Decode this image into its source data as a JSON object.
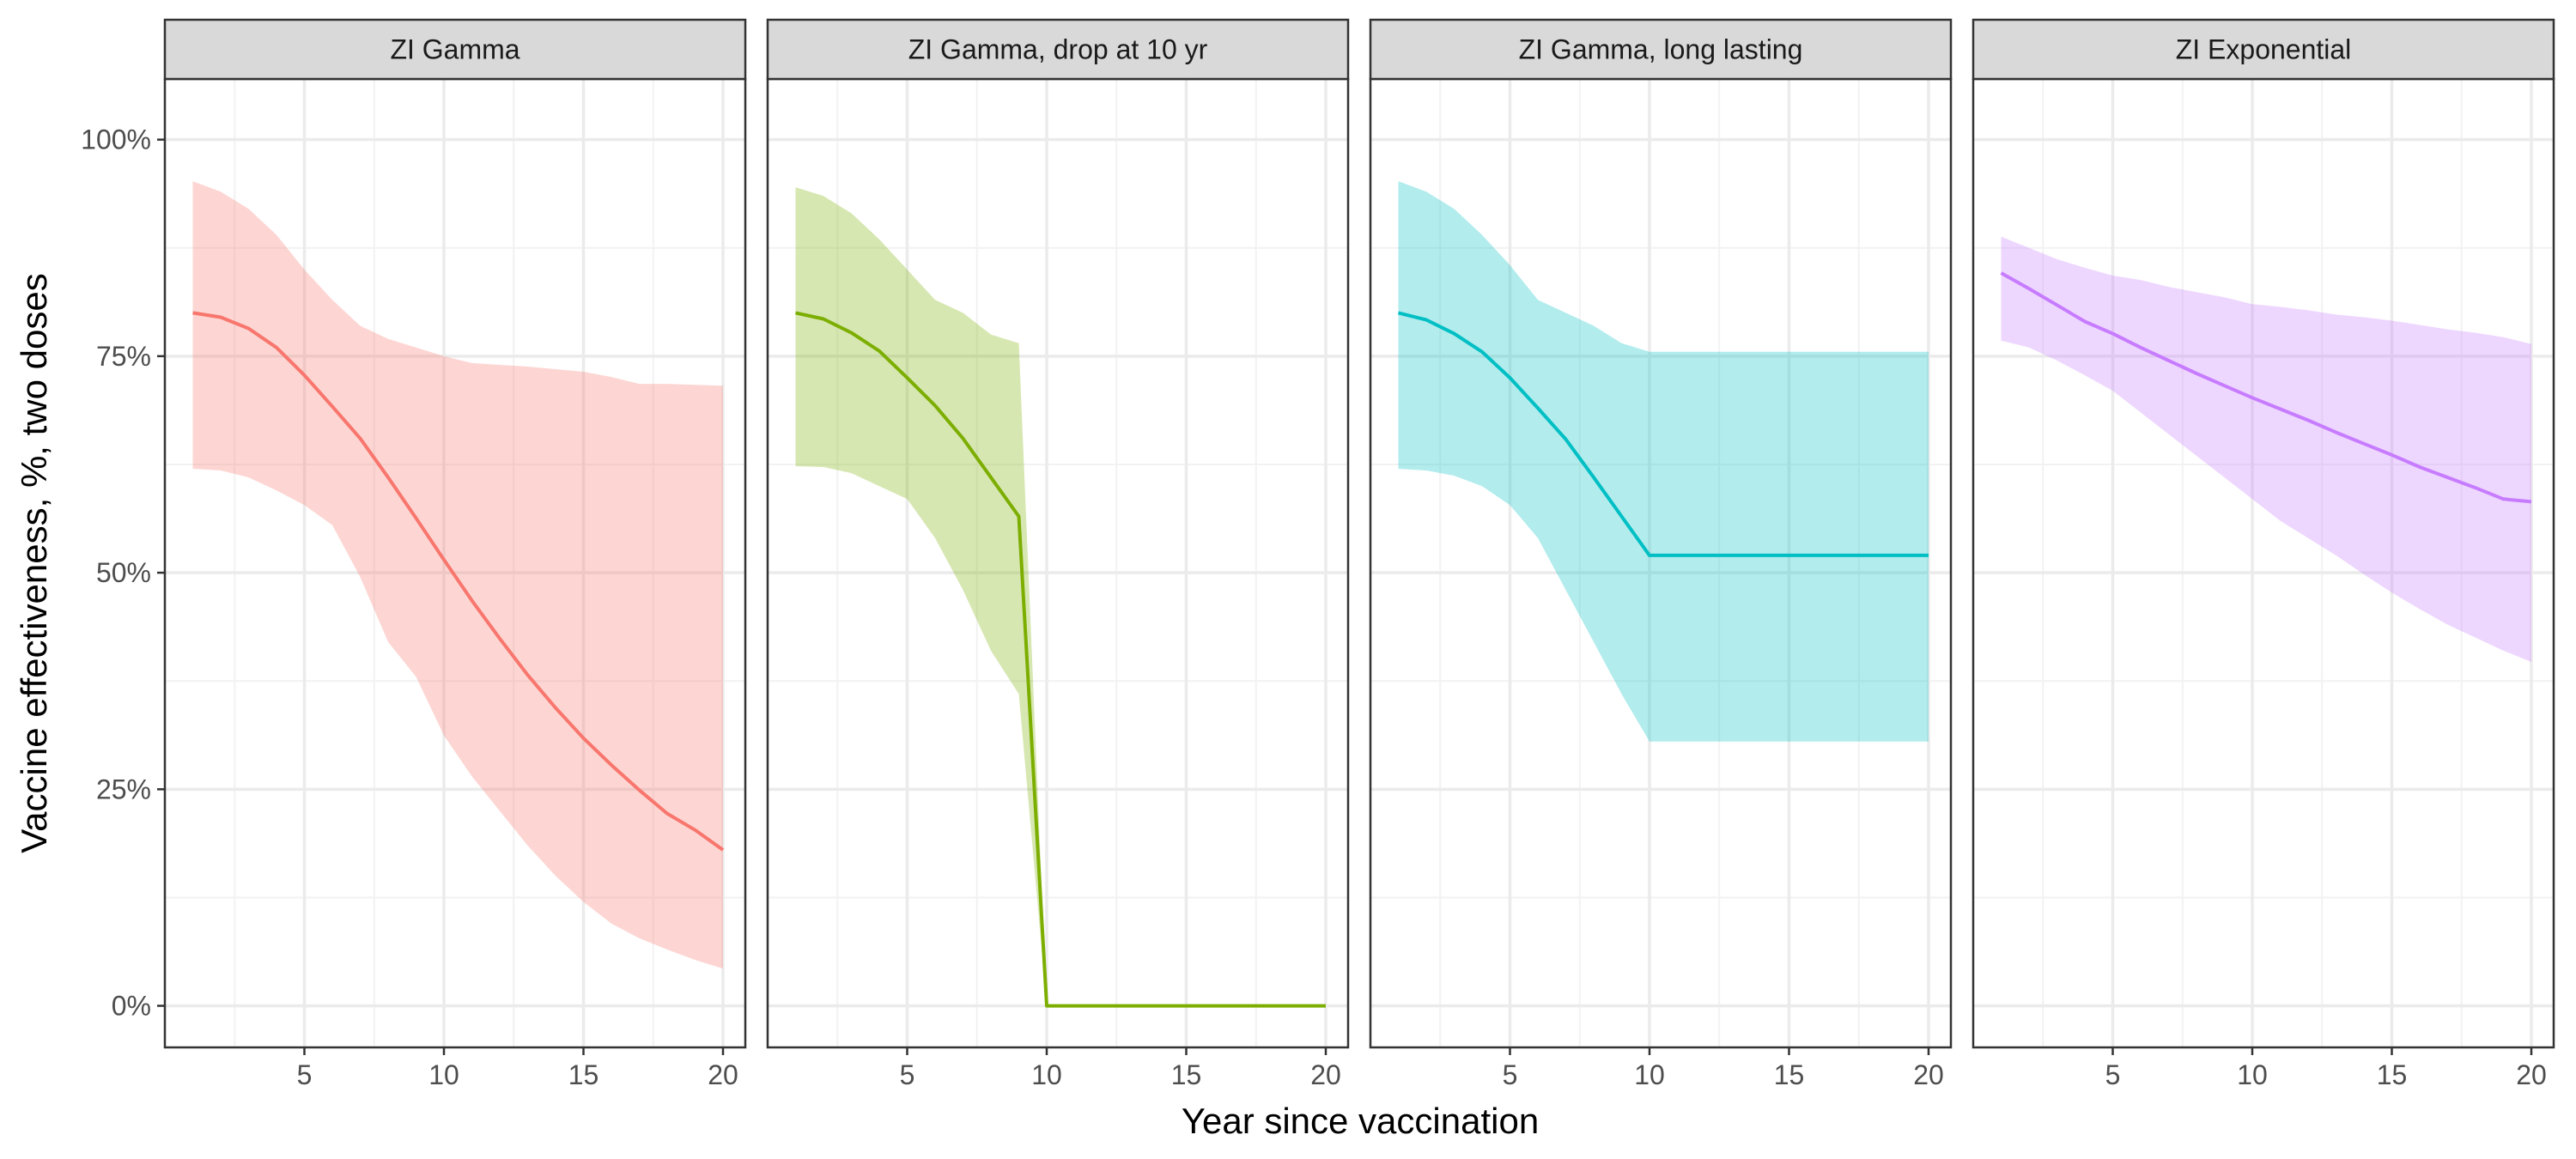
{
  "chart_data": {
    "type": "area",
    "xlabel": "Year since vaccination",
    "ylabel": "Vaccine effectiveness, %, two doses",
    "xlim": [
      0,
      20.8
    ],
    "ylim": [
      -0.048,
      1.07
    ],
    "x_ticks": [
      5,
      10,
      15,
      20
    ],
    "y_ticks": [
      0,
      0.25,
      0.5,
      0.75,
      1.0
    ],
    "y_tick_labels": [
      "0%",
      "25%",
      "50%",
      "75%",
      "100%"
    ],
    "grid": true,
    "legend": "none",
    "panels": [
      {
        "title": "ZI Gamma",
        "color": "#F8766D",
        "x": [
          1,
          2,
          3,
          4,
          5,
          6,
          7,
          8,
          9,
          10,
          11,
          12,
          13,
          14,
          15,
          16,
          17,
          18,
          19,
          20
        ],
        "mean": [
          0.8,
          0.795,
          0.782,
          0.76,
          0.728,
          0.692,
          0.655,
          0.61,
          0.563,
          0.515,
          0.468,
          0.424,
          0.382,
          0.344,
          0.309,
          0.278,
          0.249,
          0.222,
          0.203,
          0.18
        ],
        "lower": [
          0.62,
          0.618,
          0.61,
          0.595,
          0.578,
          0.555,
          0.495,
          0.42,
          0.38,
          0.312,
          0.265,
          0.225,
          0.185,
          0.15,
          0.12,
          0.095,
          0.078,
          0.065,
          0.053,
          0.043
        ],
        "upper": [
          0.952,
          0.94,
          0.92,
          0.89,
          0.85,
          0.815,
          0.785,
          0.77,
          0.76,
          0.75,
          0.742,
          0.74,
          0.738,
          0.735,
          0.732,
          0.726,
          0.718,
          0.718,
          0.717,
          0.716
        ]
      },
      {
        "title": "ZI Gamma, drop at 10 yr",
        "color": "#7CAE00",
        "x": [
          1,
          2,
          3,
          4,
          5,
          6,
          7,
          8,
          9,
          10,
          11,
          12,
          13,
          14,
          15,
          16,
          17,
          18,
          19,
          20
        ],
        "mean": [
          0.8,
          0.793,
          0.777,
          0.756,
          0.725,
          0.693,
          0.655,
          0.61,
          0.565,
          0,
          0,
          0,
          0,
          0,
          0,
          0,
          0,
          0,
          0,
          0
        ],
        "lower": [
          0.623,
          0.622,
          0.615,
          0.6,
          0.585,
          0.54,
          0.48,
          0.41,
          0.36,
          0,
          0,
          0,
          0,
          0,
          0,
          0,
          0,
          0,
          0,
          0
        ],
        "upper": [
          0.945,
          0.935,
          0.915,
          0.885,
          0.85,
          0.815,
          0.8,
          0.775,
          0.765,
          0,
          0,
          0,
          0,
          0,
          0,
          0,
          0,
          0,
          0,
          0
        ]
      },
      {
        "title": "ZI Gamma, long lasting",
        "color": "#00BFC4",
        "x": [
          1,
          2,
          3,
          4,
          5,
          6,
          7,
          8,
          9,
          10,
          11,
          12,
          13,
          14,
          15,
          16,
          17,
          18,
          19,
          20
        ],
        "mean": [
          0.8,
          0.792,
          0.776,
          0.755,
          0.725,
          0.69,
          0.654,
          0.61,
          0.565,
          0.52,
          0.52,
          0.52,
          0.52,
          0.52,
          0.52,
          0.52,
          0.52,
          0.52,
          0.52,
          0.52
        ],
        "lower": [
          0.62,
          0.618,
          0.612,
          0.6,
          0.578,
          0.54,
          0.48,
          0.42,
          0.36,
          0.305,
          0.305,
          0.305,
          0.305,
          0.305,
          0.305,
          0.305,
          0.305,
          0.305,
          0.305,
          0.305
        ],
        "upper": [
          0.952,
          0.94,
          0.92,
          0.89,
          0.855,
          0.815,
          0.8,
          0.785,
          0.765,
          0.755,
          0.755,
          0.755,
          0.755,
          0.755,
          0.755,
          0.755,
          0.755,
          0.755,
          0.755,
          0.755
        ]
      },
      {
        "title": "ZI Exponential",
        "color": "#C77CFF",
        "x": [
          1,
          2,
          3,
          4,
          5,
          6,
          7,
          8,
          9,
          10,
          11,
          12,
          13,
          14,
          15,
          16,
          17,
          18,
          19,
          20
        ],
        "mean": [
          0.846,
          0.828,
          0.809,
          0.79,
          0.776,
          0.76,
          0.745,
          0.73,
          0.716,
          0.702,
          0.689,
          0.676,
          0.662,
          0.649,
          0.636,
          0.622,
          0.61,
          0.598,
          0.585,
          0.582
        ],
        "lower": [
          0.768,
          0.76,
          0.745,
          0.728,
          0.71,
          0.685,
          0.66,
          0.635,
          0.61,
          0.585,
          0.56,
          0.54,
          0.52,
          0.498,
          0.477,
          0.458,
          0.44,
          0.425,
          0.41,
          0.397
        ],
        "upper": [
          0.888,
          0.875,
          0.862,
          0.852,
          0.843,
          0.838,
          0.83,
          0.824,
          0.818,
          0.81,
          0.807,
          0.803,
          0.798,
          0.795,
          0.791,
          0.786,
          0.781,
          0.777,
          0.772,
          0.764
        ]
      }
    ]
  }
}
